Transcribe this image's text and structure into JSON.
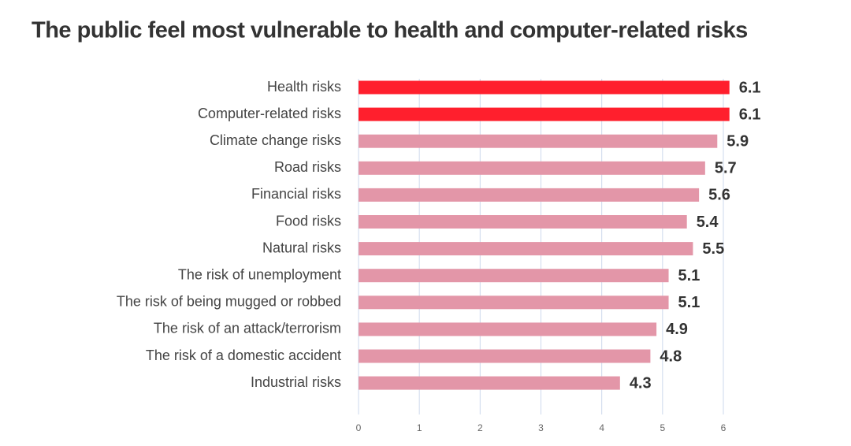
{
  "chart_data": {
    "type": "hbar",
    "title": "The public feel most vulnerable to health and computer-related risks",
    "categories": [
      "Health risks",
      "Computer-related risks",
      "Climate change risks",
      "Road risks",
      "Financial risks",
      "Food risks",
      "Natural risks",
      "The risk of unemployment",
      "The risk of being mugged or robbed",
      "The risk of an attack/terrorism",
      "The risk of a domestic accident",
      "Industrial risks"
    ],
    "values": [
      6.1,
      6.1,
      5.9,
      5.7,
      5.6,
      5.4,
      5.5,
      5.1,
      5.1,
      4.9,
      4.8,
      4.3
    ],
    "colors": [
      "#ff1f2d",
      "#ff1f2d",
      "#e396a8",
      "#e396a8",
      "#e396a8",
      "#e396a8",
      "#e396a8",
      "#e396a8",
      "#e396a8",
      "#e396a8",
      "#e396a8",
      "#e396a8"
    ],
    "xlim": [
      0,
      6
    ],
    "xticks": [
      0,
      1,
      2,
      3,
      4,
      5,
      6
    ],
    "grid": true
  }
}
